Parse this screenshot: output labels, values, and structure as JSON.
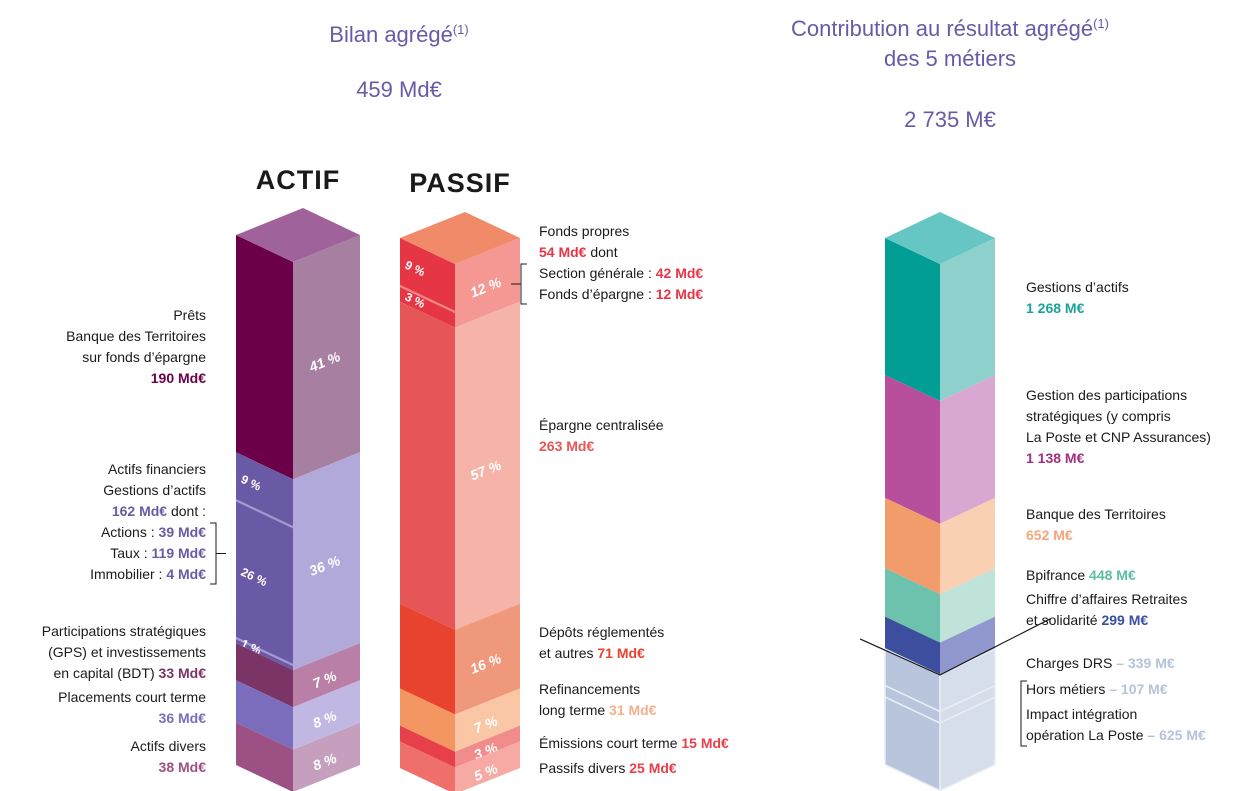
{
  "bilan": {
    "title": "Bilan agrégé",
    "note": "(1)",
    "total": "459 Md€"
  },
  "actif": {
    "heading": "ACTIF",
    "heading_color": "#6a5aa6",
    "top_color": "#a0629a",
    "segments": [
      {
        "pct": 41,
        "pct_label": "41 %",
        "color": "#6b0049",
        "light": "#a77fa0",
        "text_color": "#6b0049",
        "lines": [
          {
            "text": "Prêts"
          },
          {
            "text": "Banque des Territoires"
          },
          {
            "text": "sur fonds d’épargne"
          },
          {
            "amount": "190 Md€"
          }
        ]
      },
      {
        "pct": 36,
        "pct_label": "36 %",
        "color": "#6a5aa6",
        "light": "#b1a9d9",
        "text_color": "#6a5aa6",
        "lines": [
          {
            "text": "Actifs financiers"
          },
          {
            "text": "Gestions d’actifs"
          },
          {
            "amount": "162 Md€",
            "after": " dont :"
          }
        ],
        "subs": [
          {
            "text": "Actions : ",
            "amount": "39 Md€",
            "pct": 9,
            "pct_label": "9 %"
          },
          {
            "text": "Taux : ",
            "amount": "119 Md€",
            "pct": 26,
            "pct_label": "26 %"
          },
          {
            "text": "Immobilier : ",
            "amount": "4 Md€",
            "pct": 1,
            "pct_label": "1 %"
          }
        ]
      },
      {
        "pct": 7,
        "pct_label": "7 %",
        "color": "#7b3466",
        "light": "#b97fa6",
        "text_color": "#7b3466",
        "lines": [
          {
            "text": "Participations stratégiques"
          },
          {
            "text": "(GPS) et investissements"
          },
          {
            "text": "en capital (BDT) ",
            "amount": "33 Md€"
          }
        ]
      },
      {
        "pct": 8,
        "pct_label": "8 %",
        "color": "#7b6dbb",
        "light": "#c0b8e3",
        "text_color": "#7b6dbb",
        "lines": [
          {
            "text": "Placements court terme"
          },
          {
            "amount": "36 Md€"
          }
        ]
      },
      {
        "pct": 8,
        "pct_label": "8 %",
        "color": "#9c5083",
        "light": "#c69fbe",
        "text_color": "#9c5083",
        "lines": [
          {
            "text": "Actifs divers"
          },
          {
            "amount": "38 Md€"
          }
        ]
      }
    ]
  },
  "passif": {
    "heading": "PASSIF",
    "heading_color": "#e8434e",
    "top_color": "#f08a68",
    "segments": [
      {
        "pct": 12,
        "pct_label": "12 %",
        "color": "#e63646",
        "light": "#f59893",
        "text_color": "#e63646",
        "lines": [
          {
            "text": "Fonds propres"
          },
          {
            "amount": "54 Md€",
            "after": " dont"
          }
        ],
        "subs": [
          {
            "text": "Section générale : ",
            "amount": "42 Md€",
            "pct": 9,
            "pct_label": "9 %"
          },
          {
            "text": "Fonds d’épargne : ",
            "amount": "12 Md€",
            "pct": 3,
            "pct_label": "3 %"
          }
        ]
      },
      {
        "pct": 57,
        "pct_label": "57 %",
        "color": "#e75656",
        "light": "#f6b3a8",
        "text_color": "#e75656",
        "lines": [
          {
            "text": "Épargne centralisée"
          },
          {
            "amount": "263 Md€"
          }
        ]
      },
      {
        "pct": 16,
        "pct_label": "16 %",
        "color": "#e8432e",
        "light": "#f0987c",
        "text_color": "#e8432e",
        "lines": [
          {
            "text": "Dépôts réglementés"
          },
          {
            "text": "et autres ",
            "amount": "71 Md€"
          }
        ]
      },
      {
        "pct": 7,
        "pct_label": "7 %",
        "color": "#f39662",
        "light": "#f9c7a5",
        "text_color": "#f5b08a",
        "lines": [
          {
            "text": "Refinancements"
          },
          {
            "text": "long terme ",
            "amount": "31 Md€"
          }
        ]
      },
      {
        "pct": 3,
        "pct_label": "3 %",
        "color": "#e8404b",
        "light": "#f08c8c",
        "text_color": "#e8404b",
        "lines": [
          {
            "text": "Émissions court terme ",
            "amount": "15 Md€"
          }
        ]
      },
      {
        "pct": 5,
        "pct_label": "5 %",
        "color": "#ef6f6a",
        "light": "#f6aaa3",
        "text_color": "#e8404b",
        "lines": [
          {
            "text": "Passifs divers ",
            "amount": "25 Md€"
          }
        ]
      }
    ]
  },
  "contribution": {
    "title": [
      "Contribution au résultat agrégé",
      "des 5 métiers"
    ],
    "note": "(1)",
    "total": "2 735 M€",
    "top_color": "#66c6c3",
    "segments": [
      {
        "value": 1268,
        "value_label": "1 268 M€",
        "color": "#009e94",
        "light": "#8dd0cc",
        "text_color": "#1aa39a",
        "lines": [
          {
            "text": "Gestions d’actifs"
          },
          {
            "amount": "value"
          }
        ]
      },
      {
        "value": 1138,
        "value_label": "1 138 M€",
        "color": "#b84f9c",
        "light": "#d9a8d2",
        "text_color": "#a0307f",
        "lines": [
          {
            "text": "Gestion des participations"
          },
          {
            "text": "stratégiques (y compris"
          },
          {
            "text": "La Poste et CNP Assurances)"
          },
          {
            "amount": "value"
          }
        ]
      },
      {
        "value": 652,
        "value_label": "652 M€",
        "color": "#f39c6b",
        "light": "#fbcfb2",
        "text_color": "#f4a57a",
        "lines": [
          {
            "text": "Banque des Territoires"
          },
          {
            "amount": "value"
          }
        ]
      },
      {
        "value": 448,
        "value_label": "448 M€",
        "color": "#6cc2ac",
        "light": "#bfe3d9",
        "text_color": "#5dbea5",
        "lines": [
          {
            "text": "Bpifrance ",
            "amount": "value"
          }
        ]
      },
      {
        "value": 299,
        "value_label": "299 M€",
        "color": "#3d4e9e",
        "light": "#8f97cd",
        "text_color": "#3b4ea0",
        "lines": [
          {
            "text": "Chiffre d’affaires Retraites"
          },
          {
            "text": "et solidarité ",
            "amount": "value"
          }
        ]
      },
      {
        "value": -339,
        "value_label": "– 339 M€",
        "color": "#b8c5dc",
        "light": "#d7deeb",
        "text_color": "#b5c3da",
        "lines": [
          {
            "text": "Charges DRS ",
            "amount": "value"
          }
        ]
      },
      {
        "value": -107,
        "value_label": "– 107 M€",
        "color": "#b8c5dc",
        "light": "#d7deeb",
        "text_color": "#b5c3da",
        "lines": [
          {
            "text": "Hors métiers ",
            "amount": "value"
          }
        ]
      },
      {
        "value": -625,
        "value_label": "– 625 M€",
        "color": "#b8c5dc",
        "light": "#d7deeb",
        "text_color": "#b5c3da",
        "lines": [
          {
            "text": "Impact intégration"
          },
          {
            "text": "opération La Poste ",
            "amount": "value"
          }
        ]
      }
    ]
  }
}
